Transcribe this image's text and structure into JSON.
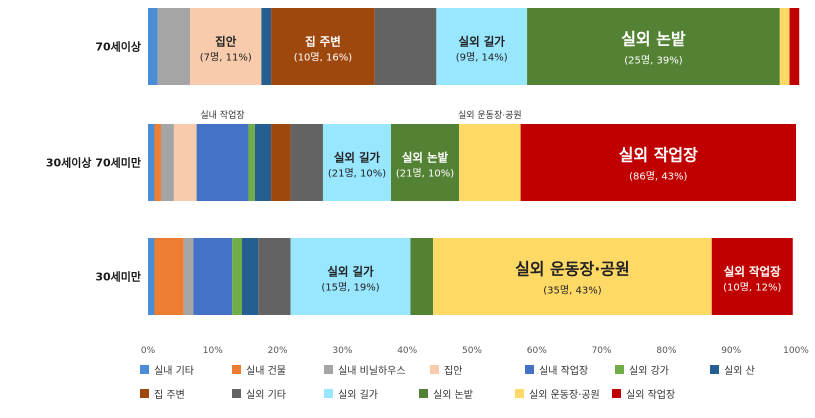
{
  "chart_data": {
    "type": "bar",
    "orientation": "horizontal",
    "stacked": "percent",
    "xlim": [
      0,
      100
    ],
    "ticks": [
      "0%",
      "10%",
      "20%",
      "30%",
      "40%",
      "50%",
      "60%",
      "70%",
      "80%",
      "90%",
      "100%"
    ],
    "grid": false,
    "legend_position": "bottom",
    "categories": [
      "70세이상",
      "30세이상 70세미만",
      "30세미만"
    ],
    "series": [
      {
        "name": "실내 기타",
        "color": "#4A8DD6",
        "values": [
          1.5,
          1.0,
          1.0
        ]
      },
      {
        "name": "실내 건물",
        "color": "#ED7D31",
        "values": [
          0.0,
          1.0,
          4.5
        ]
      },
      {
        "name": "실내 비닐하우스",
        "color": "#A5A5A5",
        "values": [
          5.0,
          2.0,
          1.5
        ]
      },
      {
        "name": "집안",
        "color": "#F8CBAD",
        "values": [
          11.0,
          3.5,
          0.0
        ]
      },
      {
        "name": "실내 작업장",
        "color": "#4472C4",
        "values": [
          0.0,
          8.0,
          6.0
        ]
      },
      {
        "name": "실외 강가",
        "color": "#70AD47",
        "values": [
          0.0,
          1.0,
          1.5
        ]
      },
      {
        "name": "실외 산",
        "color": "#255E91",
        "values": [
          1.5,
          2.5,
          2.5
        ]
      },
      {
        "name": "집 주변",
        "color": "#9E480E",
        "values": [
          16.0,
          3.0,
          0.0
        ]
      },
      {
        "name": "실외 기타",
        "color": "#636363",
        "values": [
          9.5,
          5.0,
          5.0
        ]
      },
      {
        "name": "실외 길가",
        "color": "#99E6FF",
        "values": [
          14.0,
          10.5,
          18.5
        ]
      },
      {
        "name": "실외 논밭",
        "color": "#548235",
        "values": [
          39.0,
          10.5,
          3.5
        ]
      },
      {
        "name": "실외 운동장·공원",
        "color": "#FFD966",
        "values": [
          1.5,
          9.5,
          43.0
        ]
      },
      {
        "name": "실외 작업장",
        "color": "#C00000",
        "values": [
          1.5,
          42.5,
          12.5
        ]
      }
    ],
    "segment_labels": [
      {
        "row": 0,
        "series": "집안",
        "name": "집안",
        "detail": "(7명, 11%)",
        "size": "small"
      },
      {
        "row": 0,
        "series": "집 주변",
        "name": "집 주변",
        "detail": "(10명, 16%)",
        "size": "small"
      },
      {
        "row": 0,
        "series": "실외 길가",
        "name": "실외 길가",
        "detail": "(9명, 14%)",
        "size": "small"
      },
      {
        "row": 0,
        "series": "실외 논밭",
        "name": "실외 논밭",
        "detail": "(25명, 39%)",
        "size": "large"
      },
      {
        "row": 1,
        "series": "실외 길가",
        "name": "실외 길가",
        "detail": "(21명, 10%)",
        "size": "small"
      },
      {
        "row": 1,
        "series": "실외 논밭",
        "name": "실외 논밭",
        "detail": "(21명, 10%)",
        "size": "small"
      },
      {
        "row": 1,
        "series": "실외 작업장",
        "name": "실외 작업장",
        "detail": "(86명, 43%)",
        "size": "large"
      },
      {
        "row": 2,
        "series": "실외 길가",
        "name": "실외 길가",
        "detail": "(15명, 19%)",
        "size": "small"
      },
      {
        "row": 2,
        "series": "실외 운동장·공원",
        "name": "실외 운동장·공원",
        "detail": "(35명, 43%)",
        "size": "large"
      },
      {
        "row": 2,
        "series": "실외 작업장",
        "name": "실외 작업장",
        "detail": "(10명, 12%)",
        "size": "small"
      }
    ],
    "callouts": [
      {
        "row": 1,
        "series": "실내 작업장",
        "text": "실내 작업장"
      },
      {
        "row": 1,
        "series": "실외 운동장·공원",
        "text": "실외 운동장·공원"
      }
    ]
  }
}
